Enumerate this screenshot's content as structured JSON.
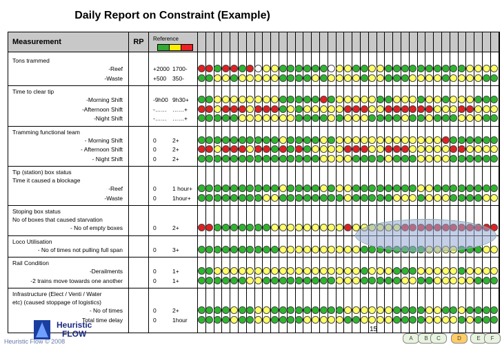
{
  "title": "Daily Report on Constraint (Example)",
  "header": {
    "measurement": "Measurement",
    "rp": "RP",
    "reference": "Reference",
    "swatches": [
      "#33aa33",
      "#ffee00",
      "#ee2222"
    ]
  },
  "sections": [
    {
      "label": "Tons trammed",
      "rows": [
        {
          "label": "-Reef",
          "a": "+2000",
          "b": "1700-",
          "dots": "rrgrrgrwyyggggggwyyggyyggggggggggyyyy"
        },
        {
          "label": "-Waste",
          "a": "+500",
          "b": "350-",
          "dots": "ggyygyyyyyggggygyyyygyygggyyyygyyyygg"
        }
      ]
    },
    {
      "label": "Time to clear tip",
      "rows": [
        {
          "label": "-Morning Shift",
          "a": "-9h00",
          "b": "9h30+",
          "dots": "ggyyyyyyyygggggrgyyyyyggyyygyygyyyggg"
        },
        {
          "label": "-Afternoon Shift",
          "a": "-……",
          "b": "……+",
          "dots": "rryrrryrrrgygyyyyyrrryyrrrrrryyyrryyy"
        },
        {
          "label": "-Night Shift",
          "a": "-……",
          "b": "……+",
          "dots": "gggggyyyyyyyggggygyyyggggyggygggyyygg"
        }
      ]
    },
    {
      "label": "Tramming functional team",
      "rows": [
        {
          "label": "- Morning Shift",
          "a": "0",
          "b": "2+",
          "dots": "ggggggggggyggggygyyyyyyyyyyyyyrgggggg"
        },
        {
          "label": "- Afternoon Shift",
          "a": "0",
          "b": "2+",
          "dots": "rryrrryrrgrgrgyyyyrrryyrrryyyyyrryyyy"
        },
        {
          "label": "- Night Shift",
          "a": "0",
          "b": "2+",
          "dots": "gggggggggggggggyyyyggggygggyyyygggggg"
        }
      ]
    },
    {
      "label": "Tip (station) box status",
      "sub": "Time it caused a blockage",
      "rows": [
        {
          "label": "-Reef",
          "a": "0",
          "b": "1 hour+",
          "dots": "ggggggggggyggggygyyggggggggyygggggggg"
        },
        {
          "label": "-Waste",
          "a": "0",
          "b": "1hour+",
          "dots": "ggggggggyyggggggggygggggyyygyyyggggyy"
        }
      ]
    },
    {
      "label": "Stoping box status",
      "sub": "No of boxes that caused starvation",
      "rows": [
        {
          "label": "- No of empty boxes",
          "a": "0",
          "b": "2+",
          "dots": "rrgggggggyyyyyyyyyryyyyyyrrrrrrrrrrrr"
        }
      ]
    },
    {
      "label": "Loco Utilisation",
      "rows": [
        {
          "label": "- No of times not pulling full span",
          "a": "0",
          "b": "3+",
          "dots": "ggggggggggyyyyyyyyyyggggggggyyyygggyy"
        }
      ]
    },
    {
      "label": "Rail Condition",
      "rows": [
        {
          "label": "-Derailments",
          "a": "0",
          "b": "1+",
          "dots": "ggyyyyyyyyyyyyyyyyyygyyygggyyyyygyyyy"
        },
        {
          "label": "-2 trains move towards one another",
          "a": "0",
          "b": "1+",
          "dots": "ggggggyygggggggggyyygggggyyggyyyyyggg"
        }
      ]
    },
    {
      "label": "Infrastructure (Elect / Venti / Water",
      "sub": "etc) (caused stoppage of logistics)",
      "rows": [
        {
          "label": "- No of times",
          "a": "0",
          "b": "2+",
          "dots": "ggggyggyygggggggggyyyyyyggggyyggygggg"
        },
        {
          "label": "Total time delay",
          "a": "0",
          "b": "1hour",
          "dots": "ggggyggyyggggyyyyyggyyyyggggyyyygyggg"
        }
      ]
    }
  ],
  "footer": {
    "copyright": "Heuristic Flow  © 2008",
    "logo_line1": "Heuristic",
    "logo_line2": "FLOW",
    "page": "15",
    "flow_nodes": [
      "A",
      "B",
      "C",
      "D",
      "E",
      "F"
    ]
  }
}
